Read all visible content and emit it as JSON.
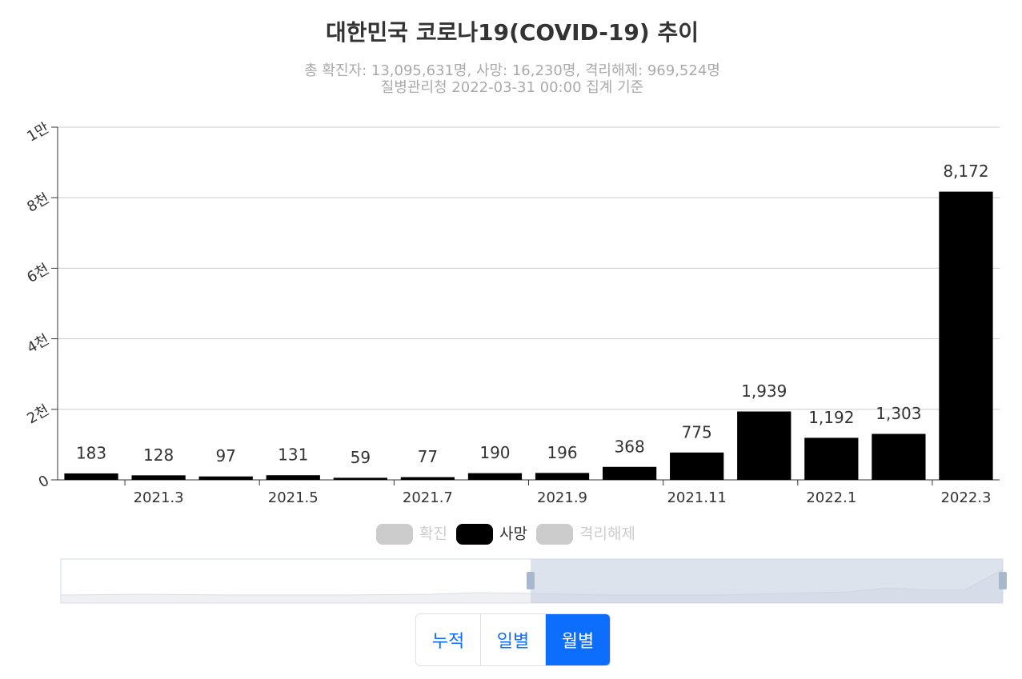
{
  "chart_data": {
    "type": "bar",
    "title": "대한민국 코로나19(COVID-19) 추이",
    "subtitle": [
      "총 확진자: 13,095,631명, 사망: 16,230명, 격리해제: 969,524명",
      "질병관리청 2022-03-31 00:00 집계 기준"
    ],
    "categories": [
      null,
      "2021.3",
      null,
      "2021.5",
      null,
      "2021.7",
      null,
      "2021.9",
      null,
      "2021.11",
      null,
      "2022.1",
      null,
      "2022.3"
    ],
    "series": [
      {
        "name": "확진",
        "color": "#cccccc",
        "visible": false
      },
      {
        "name": "사망",
        "color": "#000000",
        "visible": true,
        "values": [
          183,
          128,
          97,
          131,
          59,
          77,
          190,
          196,
          368,
          775,
          1939,
          1192,
          1303,
          8172
        ],
        "value_labels": [
          "183",
          "128",
          "97",
          "131",
          "59",
          "77",
          "190",
          "196",
          "368",
          "775",
          "1,939",
          "1,192",
          "1,303",
          "8,172"
        ]
      },
      {
        "name": "격리해제",
        "color": "#cccccc",
        "visible": false
      }
    ],
    "ylim": [
      0,
      10000
    ],
    "yticks": [
      {
        "value": 0,
        "label": "0"
      },
      {
        "value": 2000,
        "label": "2천"
      },
      {
        "value": 4000,
        "label": "4천"
      },
      {
        "value": 6000,
        "label": "6천"
      },
      {
        "value": 8000,
        "label": "8천"
      },
      {
        "value": 10000,
        "label": "1만"
      }
    ],
    "grid": true
  },
  "controls": {
    "buttons": [
      "누적",
      "일별",
      "월별"
    ],
    "active": 2
  }
}
